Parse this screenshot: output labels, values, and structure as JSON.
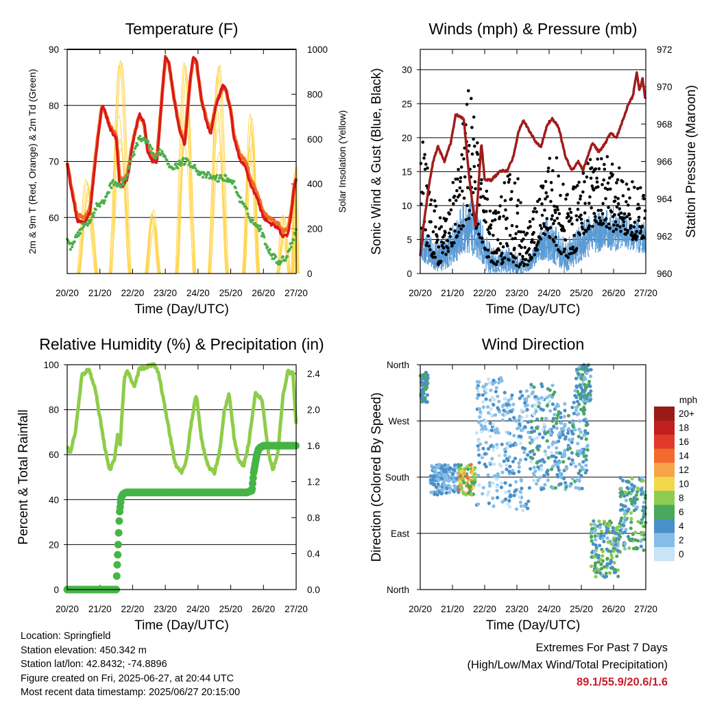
{
  "colors": {
    "temp_2m": "#d7191c",
    "temp_9m": "#f46d1f",
    "dewpoint": "#4daf4a",
    "solar": "#ffd23f",
    "wind_gust": "#000000",
    "wind_sonic": "#5b9bd5",
    "pressure": "#a01c1c",
    "rh": "#8fcc4a",
    "precip": "#45b545",
    "extremes_value": "#c8202a"
  },
  "chart_data": [
    {
      "id": "temperature",
      "type": "line",
      "title": "Temperature (F)",
      "xlabel": "Time (Day/UTC)",
      "ylabel": "2m & 9m T (Red, Orange) & 2m Td (Green)",
      "y2label": "Solar Insolation (Yellow)",
      "xticks": [
        "20/20",
        "21/20",
        "22/20",
        "23/20",
        "24/20",
        "25/20",
        "26/20",
        "27/20"
      ],
      "yticks": [
        60,
        70,
        80,
        90
      ],
      "y2ticks": [
        0,
        200,
        400,
        600,
        800,
        1000
      ],
      "xlim": [
        0,
        7
      ],
      "ylim": [
        50,
        90
      ],
      "y2lim": [
        0,
        1000
      ],
      "grid": true,
      "series": [
        {
          "key": "t2m",
          "style": "line",
          "x": [
            0,
            0.1,
            0.3,
            0.55,
            0.7,
            0.9,
            1.05,
            1.1,
            1.3,
            1.5,
            1.6,
            1.7,
            1.85,
            2.0,
            2.2,
            2.35,
            2.45,
            2.6,
            2.75,
            2.9,
            3.0,
            3.1,
            3.3,
            3.45,
            3.6,
            3.75,
            3.85,
            3.95,
            4.1,
            4.3,
            4.4,
            4.55,
            4.75,
            4.85,
            5.0,
            5.1,
            5.3,
            5.45,
            5.6,
            5.8,
            6.0,
            6.2,
            6.45,
            6.6,
            6.75,
            6.85,
            6.95,
            7.0
          ],
          "y": [
            70,
            66,
            59.5,
            59,
            61,
            72,
            79.5,
            80,
            76,
            74,
            66,
            65.5,
            67,
            73,
            78.5,
            77,
            72,
            70,
            70,
            82,
            88.5,
            88,
            80,
            75,
            73,
            84,
            88.5,
            88,
            81,
            76,
            75,
            80,
            83.5,
            83,
            79,
            74,
            70,
            69,
            66,
            63.5,
            60,
            59,
            58,
            56.5,
            57,
            60.5,
            66,
            67
          ]
        },
        {
          "key": "t9m",
          "style": "line",
          "x": [
            0,
            0.1,
            0.3,
            0.55,
            0.7,
            0.9,
            1.05,
            1.1,
            1.3,
            1.5,
            1.6,
            1.7,
            1.85,
            2.0,
            2.2,
            2.35,
            2.45,
            2.6,
            2.75,
            2.9,
            3.0,
            3.1,
            3.3,
            3.45,
            3.6,
            3.75,
            3.85,
            3.95,
            4.1,
            4.3,
            4.4,
            4.55,
            4.75,
            4.85,
            5.0,
            5.1,
            5.3,
            5.45,
            5.6,
            5.8,
            6.0,
            6.2,
            6.45,
            6.6,
            6.75,
            6.85,
            6.95,
            7.0
          ],
          "y": [
            70,
            66.2,
            60.3,
            60,
            61.8,
            72.6,
            79.4,
            79.6,
            76.4,
            74.6,
            67.2,
            66.5,
            67.8,
            73.4,
            78.2,
            76.8,
            72.6,
            70.8,
            71,
            81.8,
            88.2,
            87.8,
            80.2,
            75.6,
            73.8,
            84,
            88.2,
            87.8,
            81.2,
            76.6,
            75.8,
            80.2,
            83.2,
            82.8,
            79.2,
            74.6,
            71,
            70,
            67,
            64.5,
            60.8,
            59.8,
            58.8,
            57.5,
            57.8,
            61,
            66,
            67
          ]
        },
        {
          "key": "td2m",
          "style": "dots",
          "x": [
            0,
            0.1,
            0.3,
            0.5,
            0.7,
            0.9,
            1.1,
            1.2,
            1.4,
            1.6,
            1.8,
            2.0,
            2.2,
            2.4,
            2.6,
            2.7,
            2.8,
            3.0,
            3.1,
            3.3,
            3.5,
            3.7,
            3.9,
            4.1,
            4.3,
            4.5,
            4.7,
            4.9,
            5.1,
            5.3,
            5.5,
            5.7,
            5.9,
            6.1,
            6.3,
            6.5,
            6.7,
            6.9,
            7.0
          ],
          "y": [
            56,
            54.5,
            57,
            58.5,
            59.5,
            62,
            62.5,
            64,
            66.5,
            65.5,
            67,
            71,
            74,
            73.5,
            72,
            70,
            72,
            71,
            69.5,
            69,
            70,
            70,
            69,
            67.5,
            67.5,
            67,
            67,
            67,
            66,
            63,
            61,
            59,
            58,
            55,
            53,
            52,
            53,
            56,
            58
          ]
        },
        {
          "key": "solar",
          "style": "curves",
          "axis": "y2",
          "peaks": [
            {
              "center": 0.62,
              "width": 0.55,
              "peak": 420
            },
            {
              "center": 1.62,
              "width": 0.6,
              "peak": 950
            },
            {
              "center": 2.62,
              "width": 0.4,
              "peak": 300
            },
            {
              "center": 3.62,
              "width": 0.55,
              "peak": 940
            },
            {
              "center": 4.62,
              "width": 0.55,
              "peak": 930
            },
            {
              "center": 5.62,
              "width": 0.45,
              "peak": 760
            },
            {
              "center": 6.62,
              "width": 0.35,
              "peak": 260
            },
            {
              "center": 6.97,
              "width": 0.15,
              "peak": 480
            }
          ]
        }
      ]
    },
    {
      "id": "winds",
      "type": "scatter",
      "title": "Winds (mph) & Pressure (mb)",
      "xlabel": "Time (Day/UTC)",
      "ylabel": "Sonic Wind & Gust (Blue, Black)",
      "y2label": "Station Pressure (Maroon)",
      "xticks": [
        "20/20",
        "21/20",
        "22/20",
        "23/20",
        "24/20",
        "25/20",
        "26/20",
        "27/20"
      ],
      "yticks": [
        0,
        5,
        10,
        15,
        20,
        25,
        30
      ],
      "y2ticks": [
        960,
        962,
        964,
        966,
        968,
        970,
        972
      ],
      "xlim": [
        0,
        7
      ],
      "ylim": [
        0,
        33
      ],
      "y2lim": [
        960,
        972
      ],
      "grid": true,
      "series": [
        {
          "key": "pressure",
          "style": "line",
          "axis": "y2",
          "x": [
            0,
            0.1,
            0.25,
            0.4,
            0.55,
            0.75,
            0.95,
            1.1,
            1.35,
            1.5,
            1.6,
            1.72,
            1.9,
            2.0,
            2.2,
            2.5,
            2.7,
            2.9,
            3.05,
            3.2,
            3.4,
            3.6,
            3.75,
            3.95,
            4.1,
            4.3,
            4.5,
            4.7,
            4.9,
            5.05,
            5.2,
            5.35,
            5.55,
            5.75,
            5.9,
            6.1,
            6.3,
            6.45,
            6.6,
            6.72,
            6.8,
            6.9,
            7.0
          ],
          "y": [
            961,
            962.5,
            964.5,
            966,
            966.8,
            966,
            967,
            968.5,
            968.3,
            965.5,
            964,
            962.5,
            967,
            965,
            965,
            965.5,
            965.5,
            966.3,
            967.6,
            968.2,
            967.6,
            967,
            966.8,
            968,
            968.3,
            967.8,
            966.3,
            965.5,
            966,
            965.5,
            966.3,
            967,
            966.5,
            967,
            967.5,
            967.3,
            968.3,
            969,
            969.5,
            970.8,
            969.8,
            970.4,
            969.2
          ]
        },
        {
          "key": "sonic",
          "style": "envelope",
          "color": "wind_sonic",
          "x": [
            0,
            0.3,
            0.6,
            0.9,
            1.2,
            1.5,
            1.8,
            2.1,
            2.4,
            2.7,
            3.0,
            3.3,
            3.6,
            3.9,
            4.2,
            4.5,
            4.8,
            5.1,
            5.4,
            5.7,
            6.0,
            6.3,
            6.6,
            6.9,
            7.0
          ],
          "lo": [
            2,
            1,
            0,
            1,
            2,
            3,
            2,
            0,
            0,
            0,
            0,
            0,
            1,
            2,
            1,
            0,
            1,
            2,
            3,
            3,
            3,
            4,
            3,
            3,
            3
          ],
          "hi": [
            8,
            6,
            5,
            6,
            9,
            12,
            9,
            5,
            3,
            4,
            3,
            2,
            5,
            8,
            7,
            5,
            6,
            8,
            9,
            9,
            10,
            9,
            8,
            8,
            7
          ]
        },
        {
          "key": "gust",
          "style": "dots",
          "color": "wind_gust",
          "x": [
            0,
            0.3,
            0.6,
            0.9,
            1.2,
            1.5,
            1.8,
            2.1,
            2.4,
            2.7,
            3.0,
            3.3,
            3.6,
            3.9,
            4.2,
            4.5,
            4.8,
            5.1,
            5.4,
            5.7,
            6.0,
            6.3,
            6.6,
            6.9,
            7.0
          ],
          "lo": [
            5,
            3,
            1,
            3,
            6,
            8,
            6,
            2,
            1,
            2,
            1,
            1,
            3,
            6,
            4,
            2,
            3,
            6,
            7,
            7,
            6,
            6,
            5,
            5,
            5
          ],
          "hi": [
            22,
            14,
            8,
            13,
            18,
            31,
            20,
            12,
            10,
            17,
            15,
            6,
            12,
            18,
            19,
            12,
            13,
            18,
            17,
            17,
            18,
            15,
            14,
            13,
            10
          ]
        }
      ]
    },
    {
      "id": "humidity",
      "type": "line",
      "title": "Relative Humidity (%) & Precipitation (in)",
      "xlabel": "Time (Day/UTC)",
      "ylabel": "Percent & Total Rainfall",
      "xticks": [
        "20/20",
        "21/20",
        "22/20",
        "23/20",
        "24/20",
        "25/20",
        "26/20",
        "27/20"
      ],
      "yticks": [
        0,
        20,
        40,
        60,
        80,
        100
      ],
      "y2ticks": [
        "0.0",
        "0.4",
        "0.8",
        "1.2",
        "1.6",
        "2.0",
        "2.4"
      ],
      "xlim": [
        0,
        7
      ],
      "ylim": [
        0,
        100
      ],
      "y2lim": [
        0,
        2.5
      ],
      "grid": true,
      "series": [
        {
          "key": "rh",
          "style": "line",
          "x": [
            0,
            0.1,
            0.25,
            0.45,
            0.65,
            0.85,
            1.05,
            1.15,
            1.3,
            1.45,
            1.55,
            1.62,
            1.75,
            1.85,
            2.05,
            2.2,
            2.4,
            2.65,
            2.8,
            2.95,
            3.1,
            3.3,
            3.5,
            3.65,
            3.8,
            3.95,
            4.1,
            4.3,
            4.5,
            4.65,
            4.8,
            4.95,
            5.1,
            5.25,
            5.4,
            5.55,
            5.75,
            5.95,
            6.15,
            6.3,
            6.45,
            6.6,
            6.75,
            6.9,
            7.0
          ],
          "y": [
            63,
            61,
            70,
            95,
            98,
            90,
            72,
            63,
            53,
            58,
            70,
            65,
            95,
            97,
            90,
            98,
            99,
            100,
            96,
            84,
            72,
            56,
            52,
            58,
            75,
            87,
            67,
            55,
            52,
            60,
            79,
            87,
            68,
            57,
            55,
            65,
            87,
            85,
            61,
            53,
            62,
            86,
            97,
            96,
            74
          ]
        },
        {
          "key": "precip",
          "style": "thick",
          "axis": "y2",
          "x": [
            0,
            1.4,
            1.5,
            1.52,
            1.56,
            1.6,
            1.65,
            1.7,
            1.8,
            2.5,
            3.5,
            4.5,
            5.5,
            5.65,
            5.7,
            5.8,
            5.85,
            5.9,
            6.0,
            6.5,
            7.0
          ],
          "y": [
            0,
            0,
            0,
            0.2,
            0.5,
            0.85,
            1.02,
            1.06,
            1.08,
            1.08,
            1.08,
            1.08,
            1.08,
            1.1,
            1.3,
            1.5,
            1.56,
            1.58,
            1.6,
            1.6,
            1.6
          ]
        }
      ]
    },
    {
      "id": "wind_direction",
      "type": "scatter",
      "title": "Wind Direction",
      "xlabel": "Time (Day/UTC)",
      "ylabel": "Direction (Colored By Speed)",
      "xticks": [
        "20/20",
        "21/20",
        "22/20",
        "23/20",
        "24/20",
        "25/20",
        "26/20",
        "27/20"
      ],
      "yticks": [
        "North",
        "East",
        "South",
        "West",
        "North"
      ],
      "xlim": [
        0,
        7
      ],
      "ylim": [
        0,
        360
      ],
      "grid": true,
      "legend": {
        "title": "mph",
        "labels": [
          "20+",
          "18",
          "16",
          "14",
          "12",
          "10",
          "8",
          "6",
          "4",
          "2",
          "0"
        ],
        "colors": [
          "#9a1a1a",
          "#c21f1f",
          "#e0392a",
          "#f26a2e",
          "#f7a44a",
          "#f0d84a",
          "#8ccc52",
          "#4aa85a",
          "#4a90c8",
          "#86bde6",
          "#c8e4f6"
        ],
        "placement": "right"
      },
      "clusters": [
        {
          "x": [
            0,
            0.25
          ],
          "dir": [
            300,
            350
          ],
          "speed": [
            3,
            7
          ]
        },
        {
          "x": [
            0.3,
            1.2
          ],
          "dir": [
            150,
            200
          ],
          "speed": [
            1,
            5
          ]
        },
        {
          "x": [
            1.2,
            1.7
          ],
          "dir": [
            150,
            200
          ],
          "speed": [
            5,
            14
          ]
        },
        {
          "x": [
            1.75,
            2.6
          ],
          "dir": [
            130,
            340
          ],
          "speed": [
            0,
            4
          ]
        },
        {
          "x": [
            2.6,
            3.4
          ],
          "dir": [
            120,
            320
          ],
          "speed": [
            0,
            5
          ]
        },
        {
          "x": [
            3.4,
            4.2
          ],
          "dir": [
            160,
            330
          ],
          "speed": [
            0,
            6
          ]
        },
        {
          "x": [
            4.2,
            5.2
          ],
          "dir": [
            160,
            300
          ],
          "speed": [
            1,
            6
          ]
        },
        {
          "x": [
            4.8,
            5.3
          ],
          "dir": [
            300,
            360
          ],
          "speed": [
            2,
            7
          ]
        },
        {
          "x": [
            5.3,
            6.2
          ],
          "dir": [
            20,
            110
          ],
          "speed": [
            2,
            9
          ]
        },
        {
          "x": [
            6.2,
            7.0
          ],
          "dir": [
            60,
            180
          ],
          "speed": [
            2,
            8
          ]
        }
      ]
    }
  ],
  "station_info": {
    "location": "Location: Springfield",
    "elevation": "Station elevation: 450.342 m",
    "latlon": "Station lat/lon: 42.8432; -74.8896",
    "created": "Figure created on Fri, 2025-06-27, at 20:44 UTC",
    "recent": "Most recent data timestamp: 2025/06/27 20:15:00"
  },
  "extremes": {
    "title": "Extremes For Past 7 Days",
    "subtitle": "(High/Low/Max Wind/Total Precipitation)",
    "value": "89.1/55.9/20.6/1.6"
  }
}
